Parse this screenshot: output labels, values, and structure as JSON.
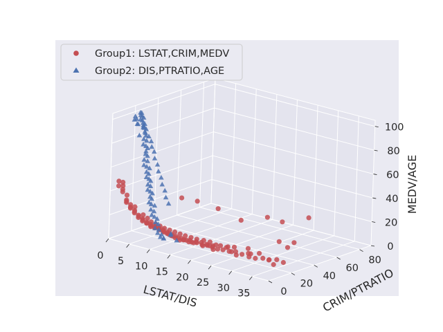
{
  "chart_data": {
    "type": "scatter",
    "projection": "3d",
    "colors": {
      "background": "#eaeaf2",
      "pane": "#e4e4ee",
      "grid": "#ffffff",
      "group1": "#c44e52",
      "group2": "#4c72b0"
    },
    "axes": {
      "x": {
        "label": "LSTAT/DIS",
        "ticks": [
          0,
          5,
          10,
          15,
          20,
          25,
          30,
          35
        ],
        "range": [
          0,
          39
        ]
      },
      "y": {
        "label": "CRIM/PTRATIO",
        "ticks": [
          0,
          20,
          40,
          60,
          80
        ],
        "range": [
          0,
          90
        ]
      },
      "z": {
        "label": "MEDV/AGE",
        "ticks": [
          0,
          20,
          40,
          60,
          80,
          100
        ],
        "range": [
          0,
          105
        ]
      }
    },
    "legend": {
      "placement": "top-left"
    },
    "grid": true,
    "series": [
      {
        "name": "Group1: LSTAT,CRIM,MEDV",
        "marker": "circle",
        "color": "#c44e52",
        "points": [
          [
            2,
            0.1,
            50
          ],
          [
            2,
            0.1,
            46
          ],
          [
            3,
            0.05,
            50
          ],
          [
            3,
            0.1,
            44
          ],
          [
            3,
            0.05,
            42
          ],
          [
            4,
            0.05,
            36
          ],
          [
            4,
            0.1,
            35
          ],
          [
            4,
            0.05,
            34
          ],
          [
            5,
            0.1,
            33
          ],
          [
            5,
            0.05,
            31
          ],
          [
            5,
            0.1,
            30
          ],
          [
            6,
            0.2,
            29
          ],
          [
            6,
            0.1,
            28
          ],
          [
            6,
            0.05,
            27
          ],
          [
            7,
            0.1,
            26
          ],
          [
            7,
            0.2,
            25
          ],
          [
            7,
            0.05,
            24
          ],
          [
            8,
            0.1,
            24
          ],
          [
            8,
            0.3,
            23
          ],
          [
            8,
            0.1,
            22
          ],
          [
            9,
            0.2,
            22
          ],
          [
            9,
            0.1,
            21
          ],
          [
            9,
            0.5,
            21
          ],
          [
            10,
            0.2,
            20
          ],
          [
            10,
            0.1,
            21
          ],
          [
            10,
            0.3,
            19
          ],
          [
            11,
            0.2,
            20
          ],
          [
            11,
            0.5,
            19
          ],
          [
            11,
            0.1,
            19
          ],
          [
            12,
            0.3,
            19
          ],
          [
            12,
            0.8,
            18
          ],
          [
            12,
            0.1,
            20
          ],
          [
            13,
            0.3,
            19
          ],
          [
            13,
            1.0,
            17
          ],
          [
            13,
            0.2,
            18
          ],
          [
            14,
            0.5,
            18
          ],
          [
            14,
            1.5,
            16
          ],
          [
            14,
            0.2,
            17
          ],
          [
            15,
            0.5,
            17
          ],
          [
            15,
            2.0,
            15
          ],
          [
            15,
            0.3,
            16
          ],
          [
            16,
            1.0,
            16
          ],
          [
            16,
            3.0,
            14
          ],
          [
            16,
            0.5,
            15
          ],
          [
            17,
            2.0,
            15
          ],
          [
            17,
            4.0,
            13
          ],
          [
            17,
            0.6,
            14
          ],
          [
            18,
            3.0,
            14
          ],
          [
            18,
            6.0,
            13
          ],
          [
            18,
            1.0,
            15
          ],
          [
            19,
            4.0,
            13
          ],
          [
            19,
            8.0,
            12
          ],
          [
            19,
            1.5,
            14
          ],
          [
            20,
            5.0,
            13
          ],
          [
            20,
            9.0,
            12
          ],
          [
            20,
            2.0,
            14
          ],
          [
            21,
            6.0,
            12
          ],
          [
            21,
            10.0,
            11
          ],
          [
            22,
            7.0,
            12
          ],
          [
            22,
            12.0,
            10
          ],
          [
            22,
            3.0,
            13
          ],
          [
            23,
            8.0,
            11
          ],
          [
            23,
            15.0,
            10
          ],
          [
            24,
            9.0,
            10
          ],
          [
            24,
            18.0,
            9
          ],
          [
            24,
            5.0,
            11
          ],
          [
            25,
            10.0,
            10
          ],
          [
            25,
            20.0,
            9
          ],
          [
            26,
            12.0,
            9
          ],
          [
            26,
            14.0,
            8
          ],
          [
            27,
            14.0,
            9
          ],
          [
            27,
            25.0,
            8
          ],
          [
            28,
            11.0,
            8
          ],
          [
            28,
            16.0,
            7
          ],
          [
            29,
            18.0,
            8
          ],
          [
            29,
            20.0,
            7
          ],
          [
            30,
            15.0,
            7
          ],
          [
            30,
            24.0,
            7
          ],
          [
            31,
            17.0,
            6
          ],
          [
            32,
            20.0,
            6
          ],
          [
            33,
            22.0,
            5
          ],
          [
            34,
            18.0,
            7
          ],
          [
            34,
            25.0,
            5
          ],
          [
            36,
            15.0,
            6
          ],
          [
            37,
            20.0,
            7
          ],
          [
            7,
            38.0,
            28
          ],
          [
            10,
            41.0,
            27
          ],
          [
            14,
            45.0,
            23
          ],
          [
            18,
            51.0,
            15
          ],
          [
            20,
            67.0,
            14
          ],
          [
            22,
            73.0,
            10
          ],
          [
            24,
            89.0,
            10
          ],
          [
            29,
            45.0,
            9
          ],
          [
            31,
            51.0,
            8
          ],
          [
            33,
            38.0,
            10
          ],
          [
            3,
            0.2,
            47
          ],
          [
            4,
            0.3,
            40
          ],
          [
            6,
            0.4,
            32
          ],
          [
            8,
            0.6,
            27
          ],
          [
            9,
            0.8,
            25
          ],
          [
            10,
            0.5,
            23
          ],
          [
            11,
            0.7,
            22
          ],
          [
            12,
            1.2,
            21
          ],
          [
            13,
            1.5,
            20
          ],
          [
            14,
            2.5,
            19
          ],
          [
            15,
            3.5,
            18
          ],
          [
            16,
            4.5,
            17
          ],
          [
            17,
            5.5,
            16
          ],
          [
            18,
            7.0,
            15
          ],
          [
            19,
            8.5,
            14
          ],
          [
            20,
            11.0,
            13
          ],
          [
            21,
            13.0,
            12
          ],
          [
            22,
            9.0,
            11
          ],
          [
            23,
            11.0,
            12
          ],
          [
            25,
            13.0,
            11
          ]
        ]
      },
      {
        "name": "Group2: DIS,PTRATIO,AGE",
        "marker": "triangle",
        "color": "#4c72b0",
        "points": [
          [
            1.2,
            20.2,
            100
          ],
          [
            1.3,
            20.2,
            98
          ],
          [
            1.4,
            21.0,
            97
          ],
          [
            1.5,
            20.2,
            100
          ],
          [
            1.6,
            19.0,
            95
          ],
          [
            1.7,
            20.2,
            94
          ],
          [
            1.8,
            21.0,
            96
          ],
          [
            1.9,
            20.2,
            92
          ],
          [
            2.0,
            14.7,
            93
          ],
          [
            2.0,
            20.2,
            90
          ],
          [
            2.1,
            21.0,
            91
          ],
          [
            2.2,
            20.2,
            88
          ],
          [
            2.3,
            19.0,
            89
          ],
          [
            2.4,
            20.2,
            85
          ],
          [
            2.5,
            21.0,
            87
          ],
          [
            2.6,
            14.7,
            84
          ],
          [
            2.7,
            20.2,
            82
          ],
          [
            2.8,
            18.0,
            80
          ],
          [
            2.9,
            20.2,
            78
          ],
          [
            3.0,
            17.0,
            76
          ],
          [
            3.1,
            19.0,
            74
          ],
          [
            3.2,
            20.2,
            72
          ],
          [
            3.3,
            18.5,
            70
          ],
          [
            3.4,
            17.8,
            68
          ],
          [
            3.5,
            19.2,
            66
          ],
          [
            3.6,
            16.0,
            64
          ],
          [
            3.7,
            18.7,
            62
          ],
          [
            3.8,
            15.2,
            60
          ],
          [
            3.9,
            17.4,
            58
          ],
          [
            4.0,
            19.6,
            56
          ],
          [
            4.1,
            16.6,
            54
          ],
          [
            4.2,
            18.3,
            52
          ],
          [
            4.3,
            15.9,
            50
          ],
          [
            4.4,
            17.9,
            48
          ],
          [
            4.5,
            19.1,
            46
          ],
          [
            4.6,
            16.4,
            44
          ],
          [
            4.7,
            18.4,
            42
          ],
          [
            4.8,
            15.6,
            40
          ],
          [
            4.9,
            17.6,
            38
          ],
          [
            5.0,
            19.2,
            36
          ],
          [
            5.1,
            16.8,
            34
          ],
          [
            5.2,
            18.0,
            32
          ],
          [
            5.3,
            15.3,
            30
          ],
          [
            5.4,
            17.0,
            28
          ],
          [
            5.5,
            19.7,
            26
          ],
          [
            5.6,
            16.1,
            24
          ],
          [
            5.8,
            18.2,
            22
          ],
          [
            6.0,
            15.5,
            20
          ],
          [
            6.2,
            17.3,
            18
          ],
          [
            6.4,
            19.0,
            16
          ],
          [
            6.6,
            16.9,
            14
          ],
          [
            6.8,
            18.6,
            12
          ],
          [
            7.0,
            15.1,
            10
          ],
          [
            7.2,
            17.8,
            8
          ],
          [
            7.4,
            16.2,
            6
          ],
          [
            7.6,
            18.9,
            4
          ],
          [
            8.0,
            16.5,
            3
          ],
          [
            8.5,
            17.6,
            2
          ],
          [
            9.0,
            15.8,
            2.9
          ],
          [
            10.0,
            18.1,
            6
          ],
          [
            10.5,
            16.6,
            8
          ],
          [
            12.1,
            16.0,
            4
          ],
          [
            1.3,
            14.7,
            96
          ],
          [
            1.5,
            14.7,
            99
          ],
          [
            1.8,
            14.7,
            97
          ],
          [
            2.2,
            14.7,
            93
          ],
          [
            2.6,
            18.6,
            90
          ],
          [
            3.0,
            18.6,
            85
          ],
          [
            3.4,
            20.2,
            82
          ],
          [
            3.8,
            21.0,
            78
          ],
          [
            4.2,
            20.2,
            74
          ],
          [
            4.6,
            21.0,
            70
          ],
          [
            5.0,
            20.2,
            65
          ],
          [
            5.5,
            21.0,
            60
          ],
          [
            6.0,
            20.2,
            55
          ],
          [
            6.5,
            21.0,
            50
          ],
          [
            7.0,
            20.2,
            45
          ],
          [
            7.5,
            21.0,
            40
          ],
          [
            8.0,
            20.2,
            35
          ],
          [
            8.5,
            21.0,
            30
          ]
        ]
      }
    ]
  }
}
